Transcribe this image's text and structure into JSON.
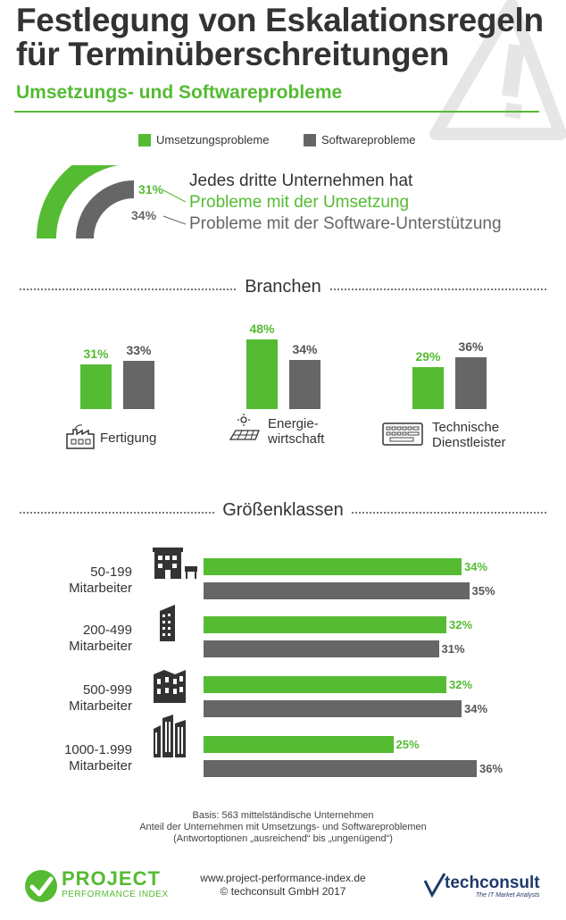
{
  "header": {
    "title_line1": "Festlegung von Eskalationsregeln",
    "title_line2": "für Terminüberschreitungen",
    "subtitle": "Umsetzungs- und Softwareprobleme"
  },
  "colors": {
    "green": "#55bb33",
    "grey": "#666666",
    "text": "#333333"
  },
  "legend": {
    "green_label": "Umsetzungsprobleme",
    "grey_label": "Softwareprobleme"
  },
  "hero": {
    "green_pct": "31%",
    "grey_pct": "34%",
    "line1": "Jedes dritte Unternehmen hat",
    "line2": "Probleme mit der Umsetzung",
    "line3": "Probleme mit der Software-Unterstützung"
  },
  "sections": {
    "branchen": "Branchen",
    "groessen": "Größenklassen"
  },
  "chart_data": [
    {
      "type": "bar",
      "title": "Branchen",
      "categories": [
        "Fertigung",
        "Energie-wirtschaft",
        "Technische Dienstleister"
      ],
      "series": [
        {
          "name": "Umsetzungsprobleme",
          "values": [
            31,
            48,
            29
          ],
          "labels": [
            "31%",
            "48%",
            "29%"
          ]
        },
        {
          "name": "Softwareprobleme",
          "values": [
            33,
            34,
            36
          ],
          "labels": [
            "33%",
            "34%",
            "36%"
          ]
        }
      ],
      "category_lines": [
        [
          "Fertigung"
        ],
        [
          "Energie-",
          "wirtschaft"
        ],
        [
          "Technische",
          "Dienstleister"
        ]
      ],
      "category_icons": [
        "factory-icon",
        "solar-panel-icon",
        "keyboard-icon"
      ],
      "ylim": [
        0,
        48
      ]
    },
    {
      "type": "bar",
      "orientation": "horizontal",
      "title": "Größenklassen",
      "categories": [
        "50-199 Mitarbeiter",
        "200-499 Mitarbeiter",
        "500-999 Mitarbeiter",
        "1000-1.999 Mitarbeiter"
      ],
      "series": [
        {
          "name": "Umsetzungsprobleme",
          "values": [
            34,
            32,
            32,
            25
          ],
          "labels": [
            "34%",
            "32%",
            "32%",
            "25%"
          ]
        },
        {
          "name": "Softwareprobleme",
          "values": [
            35,
            31,
            34,
            36
          ],
          "labels": [
            "35%",
            "31%",
            "34%",
            "36%"
          ]
        }
      ],
      "category_lines": [
        [
          "50-199",
          "Mitarbeiter"
        ],
        [
          "200-499",
          "Mitarbeiter"
        ],
        [
          "500-999",
          "Mitarbeiter"
        ],
        [
          "1000-1.999",
          "Mitarbeiter"
        ]
      ],
      "category_icons": [
        "small-building-icon",
        "office-tower-icon",
        "office-block-icon",
        "skyscraper-group-icon"
      ],
      "xlim": [
        0,
        36
      ]
    }
  ],
  "footnote": {
    "line1": "Basis: 563 mittelständische Unternehmen",
    "line2": "Anteil der Unternehmen mit Umsetzungs- und Softwareproblemen",
    "line3": "(Antwortoptionen „ausreichend“ bis „ungenügend“)"
  },
  "footer": {
    "logo_line1": "PROJECT",
    "logo_line2": "PERFORMANCE INDEX",
    "url": "www.project-performance-index.de",
    "copyright": "© techconsult GmbH 2017",
    "brand": "techconsult",
    "brand_tagline": "The IT Market Analysts"
  }
}
